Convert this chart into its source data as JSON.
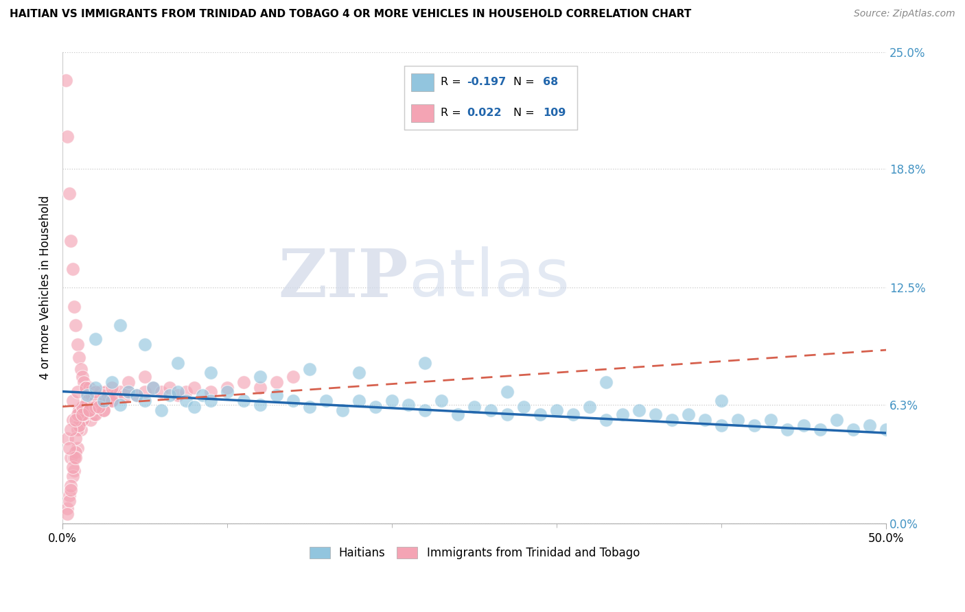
{
  "title": "HAITIAN VS IMMIGRANTS FROM TRINIDAD AND TOBAGO 4 OR MORE VEHICLES IN HOUSEHOLD CORRELATION CHART",
  "source": "Source: ZipAtlas.com",
  "xmin": 0.0,
  "xmax": 50.0,
  "ymin": 0.0,
  "ymax": 25.0,
  "ytick_vals": [
    0.0,
    6.3,
    12.5,
    18.8,
    25.0
  ],
  "ytick_labels": [
    "0.0%",
    "6.3%",
    "12.5%",
    "18.8%",
    "25.0%"
  ],
  "xtick_vals": [
    0.0,
    50.0
  ],
  "xtick_labels": [
    "0.0%",
    "50.0%"
  ],
  "color_blue": "#92c5de",
  "color_pink": "#f4a4b4",
  "color_blue_line": "#2166ac",
  "color_pink_line": "#d6604d",
  "color_blue_right": "#4393c3",
  "watermark_zip": "ZIP",
  "watermark_atlas": "atlas",
  "ylabel": "4 or more Vehicles in Household",
  "legend_label1": "Haitians",
  "legend_label2": "Immigrants from Trinidad and Tobago",
  "blue_x": [
    1.5,
    2.0,
    2.5,
    3.0,
    3.5,
    4.0,
    4.5,
    5.0,
    5.5,
    6.0,
    6.5,
    7.0,
    7.5,
    8.0,
    8.5,
    9.0,
    10.0,
    11.0,
    12.0,
    13.0,
    14.0,
    15.0,
    16.0,
    17.0,
    18.0,
    19.0,
    20.0,
    21.0,
    22.0,
    23.0,
    24.0,
    25.0,
    26.0,
    27.0,
    28.0,
    29.0,
    30.0,
    31.0,
    32.0,
    33.0,
    34.0,
    35.0,
    36.0,
    37.0,
    38.0,
    39.0,
    40.0,
    41.0,
    42.0,
    43.0,
    44.0,
    45.0,
    46.0,
    47.0,
    48.0,
    49.0,
    50.0,
    2.0,
    3.5,
    5.0,
    7.0,
    9.0,
    12.0,
    15.0,
    18.0,
    22.0,
    27.0,
    33.0,
    40.0
  ],
  "blue_y": [
    6.8,
    7.2,
    6.5,
    7.5,
    6.3,
    7.0,
    6.8,
    6.5,
    7.2,
    6.0,
    6.8,
    7.0,
    6.5,
    6.2,
    6.8,
    6.5,
    7.0,
    6.5,
    6.3,
    6.8,
    6.5,
    6.2,
    6.5,
    6.0,
    6.5,
    6.2,
    6.5,
    6.3,
    6.0,
    6.5,
    5.8,
    6.2,
    6.0,
    5.8,
    6.2,
    5.8,
    6.0,
    5.8,
    6.2,
    5.5,
    5.8,
    6.0,
    5.8,
    5.5,
    5.8,
    5.5,
    5.2,
    5.5,
    5.2,
    5.5,
    5.0,
    5.2,
    5.0,
    5.5,
    5.0,
    5.2,
    5.0,
    9.8,
    10.5,
    9.5,
    8.5,
    8.0,
    7.8,
    8.2,
    8.0,
    8.5,
    7.0,
    7.5,
    6.5
  ],
  "pink_x": [
    0.2,
    0.3,
    0.4,
    0.5,
    0.6,
    0.7,
    0.8,
    0.9,
    1.0,
    1.1,
    1.2,
    1.3,
    1.4,
    1.5,
    1.6,
    1.7,
    1.8,
    1.9,
    2.0,
    2.1,
    2.2,
    2.3,
    2.4,
    2.5,
    2.6,
    2.7,
    2.8,
    2.9,
    3.0,
    3.2,
    3.5,
    3.8,
    4.0,
    4.5,
    5.0,
    5.5,
    6.0,
    6.5,
    7.0,
    7.5,
    8.0,
    9.0,
    10.0,
    11.0,
    12.0,
    13.0,
    14.0,
    0.3,
    0.5,
    0.7,
    0.9,
    1.1,
    1.3,
    1.5,
    1.7,
    1.9,
    0.4,
    0.6,
    0.8,
    1.0,
    1.2,
    1.5,
    1.8,
    0.3,
    0.5,
    0.7,
    0.9,
    1.2,
    1.5,
    2.0,
    2.5,
    3.0,
    0.4,
    0.6,
    0.8,
    1.0,
    1.3,
    1.6,
    1.9,
    2.2,
    2.5,
    0.3,
    0.5,
    0.8,
    1.0,
    1.3,
    1.7,
    2.0,
    2.5,
    0.4,
    0.6,
    0.9,
    1.2,
    1.6,
    2.0,
    0.5,
    0.8,
    1.2,
    1.6,
    2.2,
    0.6,
    0.9,
    1.4,
    2.0,
    3.0,
    4.0,
    5.0
  ],
  "pink_y": [
    23.5,
    20.5,
    17.5,
    15.0,
    13.5,
    11.5,
    10.5,
    9.5,
    8.8,
    8.2,
    7.8,
    7.5,
    7.2,
    7.0,
    7.2,
    7.0,
    6.8,
    6.8,
    6.5,
    6.8,
    6.8,
    7.0,
    6.8,
    6.8,
    7.0,
    6.8,
    6.5,
    6.8,
    6.5,
    6.8,
    7.0,
    6.8,
    7.0,
    6.8,
    7.0,
    7.2,
    7.0,
    7.2,
    6.8,
    7.0,
    7.2,
    7.0,
    7.2,
    7.5,
    7.2,
    7.5,
    7.8,
    4.5,
    3.5,
    2.8,
    4.0,
    5.0,
    5.5,
    5.8,
    5.5,
    6.0,
    1.5,
    2.5,
    3.8,
    6.0,
    5.5,
    6.2,
    6.0,
    0.8,
    2.0,
    3.5,
    5.0,
    6.2,
    6.5,
    6.5,
    6.8,
    6.5,
    1.2,
    3.0,
    4.5,
    6.0,
    5.8,
    6.2,
    5.8,
    6.2,
    6.0,
    0.5,
    1.8,
    3.5,
    5.2,
    5.8,
    6.0,
    5.8,
    6.0,
    4.0,
    5.5,
    5.8,
    6.2,
    6.0,
    6.2,
    5.0,
    5.5,
    5.8,
    6.0,
    6.2,
    6.5,
    7.0,
    7.2,
    7.0,
    7.2,
    7.5,
    7.8
  ]
}
